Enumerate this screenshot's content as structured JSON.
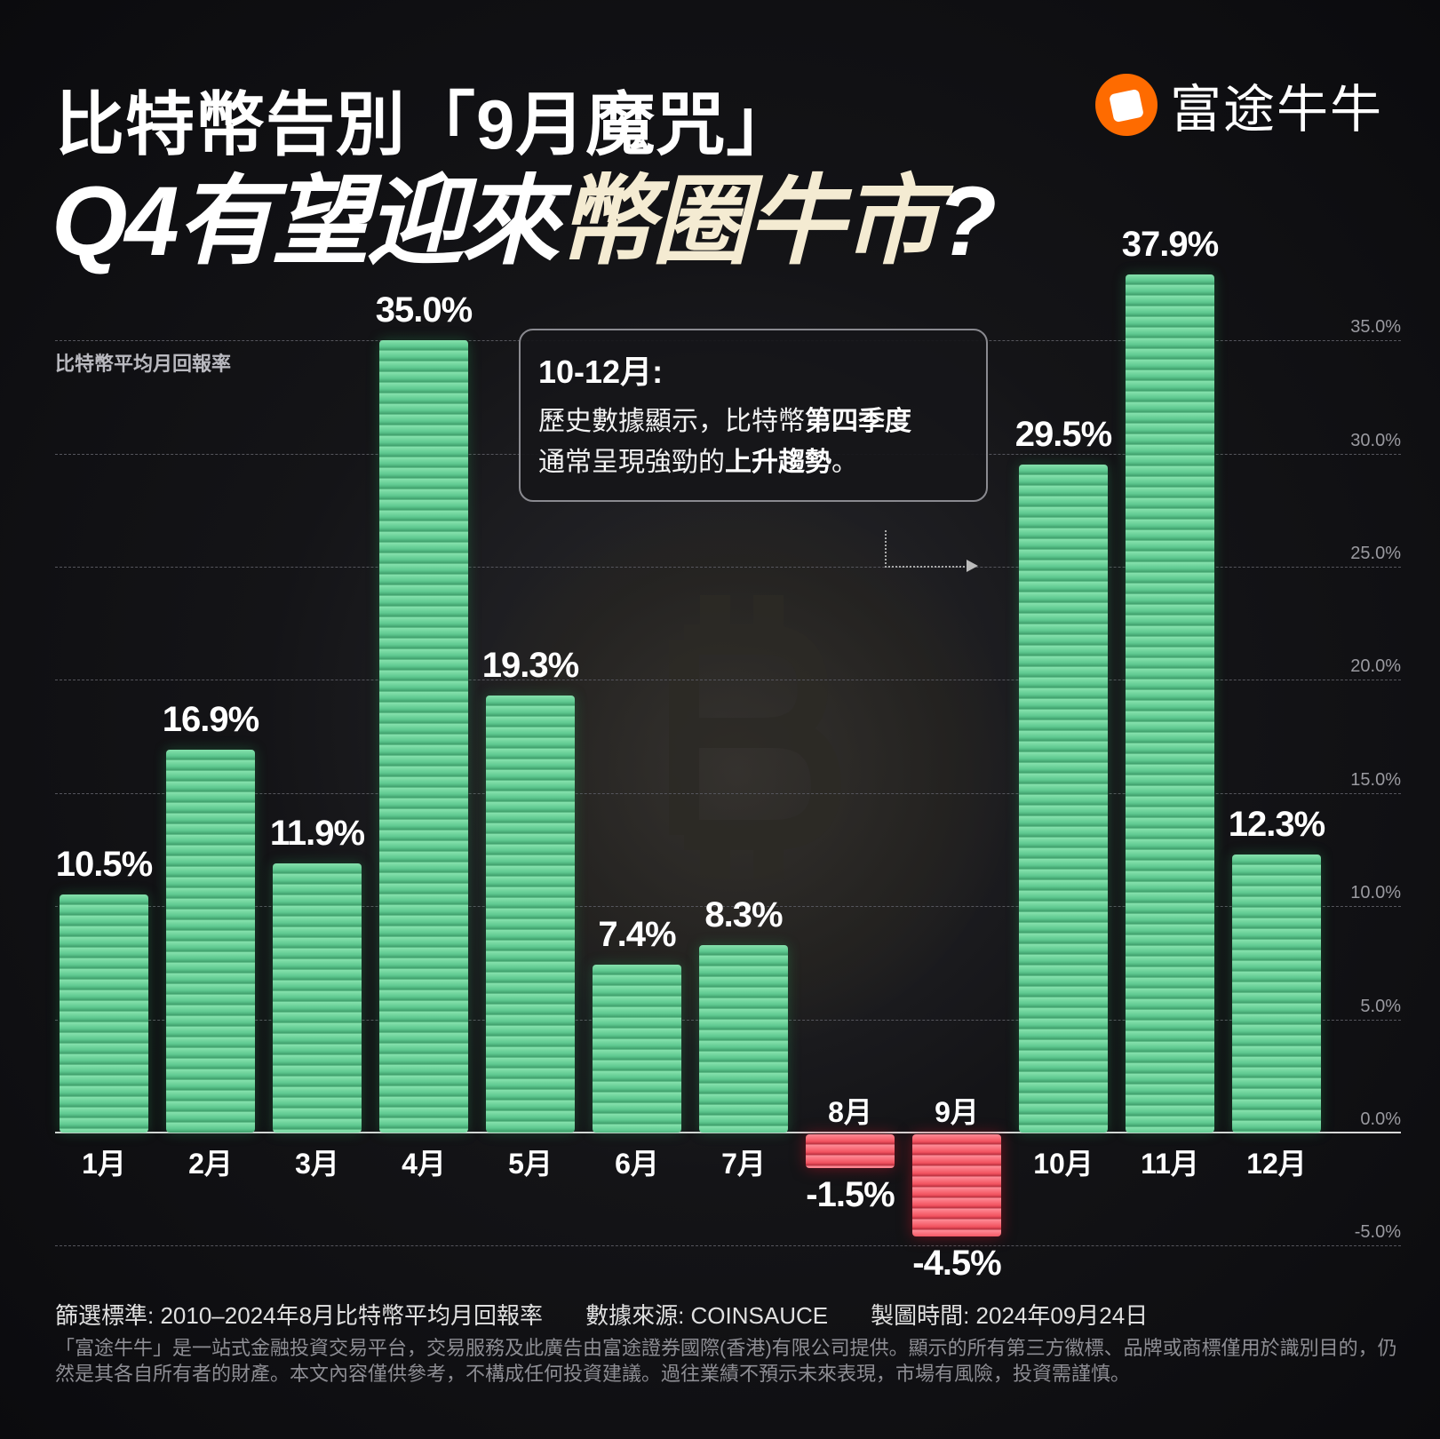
{
  "header": {
    "title_line1": "比特幣告別「9月魔咒」",
    "title_line2_plain": "Q4有望迎來",
    "title_line2_highlight": "幣圈牛市",
    "title_line2_end": "?",
    "logo_text": "富途牛牛",
    "brand_color": "#fe6b00"
  },
  "callout": {
    "heading": "10-12月:",
    "line1_plain": "歷史數據顯示，比特幣",
    "line1_bold": "第四季度",
    "line2_plain": "通常呈現強勁的",
    "line2_bold": "上升趨勢",
    "line2_end": "。"
  },
  "chart_data": {
    "type": "bar",
    "subtitle": "比特幣平均月回報率",
    "categories": [
      "1月",
      "2月",
      "3月",
      "4月",
      "5月",
      "6月",
      "7月",
      "8月",
      "9月",
      "10月",
      "11月",
      "12月"
    ],
    "values": [
      10.5,
      16.9,
      11.9,
      35.0,
      19.3,
      7.4,
      8.3,
      -1.5,
      -4.5,
      29.5,
      37.9,
      12.3
    ],
    "value_labels": [
      "10.5%",
      "16.9%",
      "11.9%",
      "35.0%",
      "19.3%",
      "7.4%",
      "8.3%",
      "-1.5%",
      "-4.5%",
      "29.5%",
      "37.9%",
      "12.3%"
    ],
    "ylim": [
      -5,
      35
    ],
    "yticks": [
      -5,
      0,
      5,
      10,
      15,
      20,
      25,
      30,
      35
    ],
    "ytick_labels": [
      "-5.0%",
      "0.0%",
      "5.0%",
      "10.0%",
      "15.0%",
      "20.0%",
      "25.0%",
      "30.0%",
      "35.0%"
    ],
    "grid": true,
    "colors": {
      "positive": "#6fd69c",
      "negative": "#f2525f"
    }
  },
  "footer": {
    "criteria": "篩選標準: 2010–2024年8月比特幣平均月回報率",
    "source": "數據來源: COINSAUCE",
    "date": "製圖時間: 2024年09月24日",
    "disclaimer": "「富途牛牛」是一站式金融投資交易平台，交易服務及此廣告由富途證券國際(香港)有限公司提供。顯示的所有第三方徽標、品牌或商標僅用於識別目的，仍然是其各自所有者的財產。本文內容僅供參考，不構成任何投資建議。過往業績不預示未來表現，市場有風險，投資需謹慎。"
  }
}
